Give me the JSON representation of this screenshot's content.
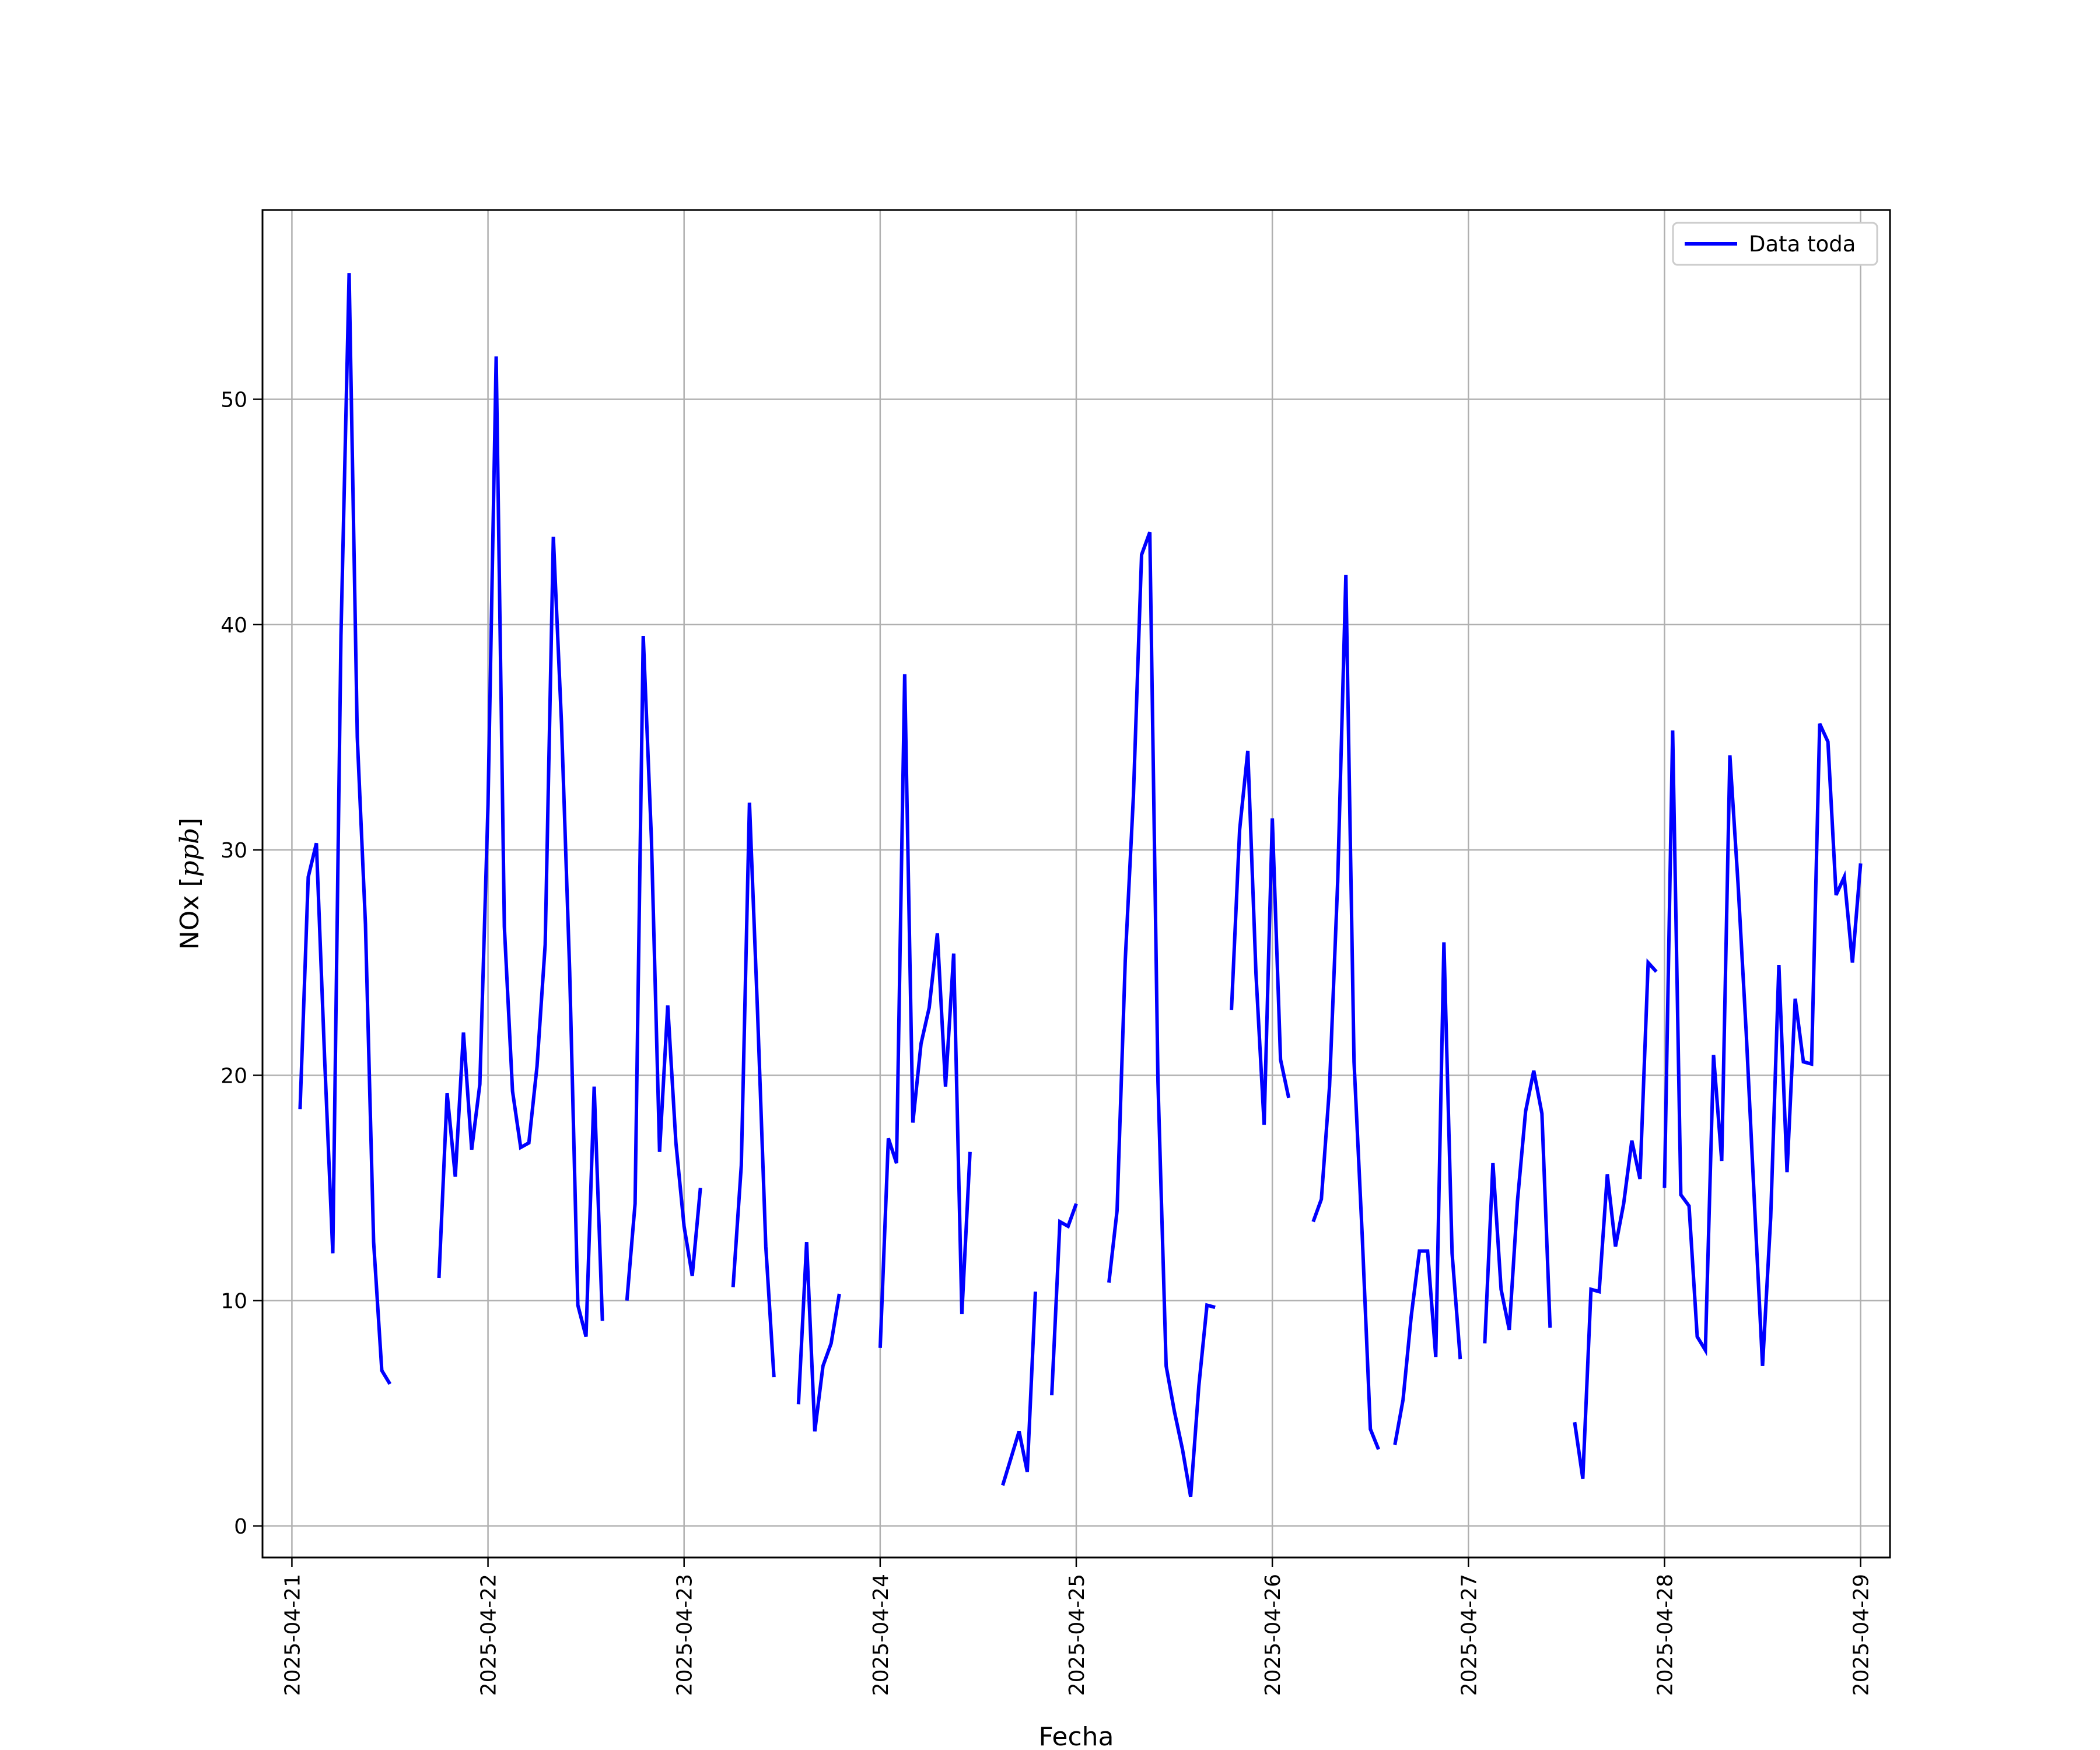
{
  "chart_data": {
    "type": "line",
    "xlabel": "Fecha",
    "ylabel_main": "NOx ",
    "ylabel_unit": "ppb",
    "grid": true,
    "legend_position": "top-right",
    "xlim": [
      "2025-04-20T20:24",
      "2025-04-29T03:36"
    ],
    "ylim": [
      -1.4,
      58.4
    ],
    "x_ticks": [
      "2025-04-21",
      "2025-04-22",
      "2025-04-23",
      "2025-04-24",
      "2025-04-25",
      "2025-04-26",
      "2025-04-27",
      "2025-04-28",
      "2025-04-29"
    ],
    "y_ticks": [
      0,
      10,
      20,
      30,
      40,
      50
    ],
    "colors": {
      "line": "#0000ff",
      "grid": "#b0b0b0",
      "legend_border": "#cccccc"
    },
    "series": [
      {
        "name": "Data toda",
        "segments": [
          [
            [
              "2025-04-21T01:00",
              18.5
            ],
            [
              "2025-04-21T02:00",
              28.8
            ],
            [
              "2025-04-21T03:00",
              30.3
            ],
            [
              "2025-04-21T04:00",
              20.8
            ],
            [
              "2025-04-21T05:00",
              12.1
            ],
            [
              "2025-04-21T06:00",
              39.5
            ],
            [
              "2025-04-21T07:00",
              55.6
            ],
            [
              "2025-04-21T08:00",
              35.0
            ],
            [
              "2025-04-21T09:00",
              26.7
            ],
            [
              "2025-04-21T10:00",
              12.6
            ],
            [
              "2025-04-21T11:00",
              6.9
            ],
            [
              "2025-04-21T12:00",
              6.3
            ]
          ],
          [
            [
              "2025-04-21T18:00",
              11.0
            ],
            [
              "2025-04-21T19:00",
              19.2
            ],
            [
              "2025-04-21T20:00",
              15.5
            ],
            [
              "2025-04-21T21:00",
              21.9
            ],
            [
              "2025-04-21T22:00",
              16.7
            ],
            [
              "2025-04-21T23:00",
              19.6
            ],
            [
              "2025-04-22T00:00",
              32.0
            ],
            [
              "2025-04-22T01:00",
              51.9
            ],
            [
              "2025-04-22T02:00",
              26.6
            ],
            [
              "2025-04-22T03:00",
              19.3
            ],
            [
              "2025-04-22T04:00",
              16.8
            ],
            [
              "2025-04-22T05:00",
              17.0
            ],
            [
              "2025-04-22T06:00",
              20.4
            ],
            [
              "2025-04-22T07:00",
              25.8
            ],
            [
              "2025-04-22T08:00",
              43.9
            ],
            [
              "2025-04-22T09:00",
              35.6
            ],
            [
              "2025-04-22T10:00",
              24.6
            ],
            [
              "2025-04-22T11:00",
              9.8
            ],
            [
              "2025-04-22T12:00",
              8.4
            ],
            [
              "2025-04-22T13:00",
              19.5
            ],
            [
              "2025-04-22T14:00",
              9.1
            ]
          ],
          [
            [
              "2025-04-22T17:00",
              10.0
            ],
            [
              "2025-04-22T18:00",
              14.3
            ],
            [
              "2025-04-22T19:00",
              39.5
            ],
            [
              "2025-04-22T20:00",
              30.5
            ],
            [
              "2025-04-22T21:00",
              16.6
            ],
            [
              "2025-04-22T22:00",
              23.1
            ],
            [
              "2025-04-22T23:00",
              17.0
            ],
            [
              "2025-04-23T00:00",
              13.3
            ],
            [
              "2025-04-23T01:00",
              11.1
            ],
            [
              "2025-04-23T02:00",
              15.0
            ]
          ],
          [
            [
              "2025-04-23T06:00",
              10.6
            ],
            [
              "2025-04-23T07:00",
              16.0
            ],
            [
              "2025-04-23T08:00",
              32.1
            ],
            [
              "2025-04-23T09:00",
              22.7
            ],
            [
              "2025-04-23T10:00",
              12.4
            ],
            [
              "2025-04-23T11:00",
              6.6
            ]
          ],
          [
            [
              "2025-04-23T14:00",
              5.4
            ],
            [
              "2025-04-23T15:00",
              12.6
            ],
            [
              "2025-04-23T16:00",
              4.2
            ],
            [
              "2025-04-23T17:00",
              7.1
            ],
            [
              "2025-04-23T18:00",
              8.1
            ],
            [
              "2025-04-23T19:00",
              10.3
            ]
          ],
          [
            [
              "2025-04-24T00:00",
              7.9
            ],
            [
              "2025-04-24T01:00",
              17.2
            ],
            [
              "2025-04-24T02:00",
              16.1
            ],
            [
              "2025-04-24T03:00",
              37.8
            ],
            [
              "2025-04-24T04:00",
              17.9
            ],
            [
              "2025-04-24T05:00",
              21.4
            ],
            [
              "2025-04-24T06:00",
              23.0
            ],
            [
              "2025-04-24T07:00",
              26.3
            ],
            [
              "2025-04-24T08:00",
              19.5
            ],
            [
              "2025-04-24T09:00",
              25.4
            ],
            [
              "2025-04-24T10:00",
              9.4
            ],
            [
              "2025-04-24T11:00",
              16.6
            ]
          ],
          [
            [
              "2025-04-24T15:00",
              1.8
            ],
            [
              "2025-04-24T16:00",
              3.0
            ],
            [
              "2025-04-24T17:00",
              4.2
            ],
            [
              "2025-04-24T18:00",
              2.4
            ],
            [
              "2025-04-24T19:00",
              10.4
            ]
          ],
          [
            [
              "2025-04-24T21:00",
              5.8
            ],
            [
              "2025-04-24T22:00",
              13.5
            ],
            [
              "2025-04-24T23:00",
              13.3
            ],
            [
              "2025-04-25T00:00",
              14.3
            ]
          ],
          [
            [
              "2025-04-25T04:00",
              10.8
            ],
            [
              "2025-04-25T05:00",
              14.0
            ],
            [
              "2025-04-25T06:00",
              25.1
            ],
            [
              "2025-04-25T07:00",
              32.4
            ],
            [
              "2025-04-25T08:00",
              43.1
            ],
            [
              "2025-04-25T09:00",
              44.1
            ],
            [
              "2025-04-25T10:00",
              19.7
            ],
            [
              "2025-04-25T11:00",
              7.1
            ],
            [
              "2025-04-25T12:00",
              5.1
            ],
            [
              "2025-04-25T13:00",
              3.4
            ],
            [
              "2025-04-25T14:00",
              1.3
            ],
            [
              "2025-04-25T15:00",
              6.2
            ],
            [
              "2025-04-25T16:00",
              9.8
            ],
            [
              "2025-04-25T17:00",
              9.7
            ]
          ],
          [
            [
              "2025-04-25T19:00",
              22.9
            ],
            [
              "2025-04-25T20:00",
              30.9
            ],
            [
              "2025-04-25T21:00",
              34.4
            ],
            [
              "2025-04-25T22:00",
              24.5
            ],
            [
              "2025-04-25T23:00",
              17.8
            ],
            [
              "2025-04-26T00:00",
              31.4
            ],
            [
              "2025-04-26T01:00",
              20.7
            ],
            [
              "2025-04-26T02:00",
              19.0
            ]
          ],
          [
            [
              "2025-04-26T05:00",
              13.5
            ],
            [
              "2025-04-26T06:00",
              14.5
            ],
            [
              "2025-04-26T07:00",
              19.5
            ],
            [
              "2025-04-26T08:00",
              28.6
            ],
            [
              "2025-04-26T09:00",
              42.2
            ],
            [
              "2025-04-26T10:00",
              20.6
            ],
            [
              "2025-04-26T11:00",
              12.9
            ],
            [
              "2025-04-26T12:00",
              4.3
            ],
            [
              "2025-04-26T13:00",
              3.4
            ]
          ],
          [
            [
              "2025-04-26T15:00",
              3.6
            ],
            [
              "2025-04-26T16:00",
              5.6
            ],
            [
              "2025-04-26T17:00",
              9.3
            ],
            [
              "2025-04-26T18:00",
              12.2
            ],
            [
              "2025-04-26T19:00",
              12.2
            ],
            [
              "2025-04-26T20:00",
              7.5
            ],
            [
              "2025-04-26T21:00",
              25.9
            ],
            [
              "2025-04-26T22:00",
              12.1
            ],
            [
              "2025-04-26T23:00",
              7.4
            ]
          ],
          [
            [
              "2025-04-27T02:00",
              8.1
            ],
            [
              "2025-04-27T03:00",
              16.1
            ],
            [
              "2025-04-27T04:00",
              10.5
            ],
            [
              "2025-04-27T05:00",
              8.7
            ],
            [
              "2025-04-27T06:00",
              14.4
            ],
            [
              "2025-04-27T07:00",
              18.4
            ],
            [
              "2025-04-27T08:00",
              20.2
            ],
            [
              "2025-04-27T09:00",
              18.3
            ],
            [
              "2025-04-27T10:00",
              8.8
            ]
          ],
          [
            [
              "2025-04-27T13:00",
              4.6
            ],
            [
              "2025-04-27T14:00",
              2.1
            ],
            [
              "2025-04-27T15:00",
              10.5
            ],
            [
              "2025-04-27T16:00",
              10.4
            ],
            [
              "2025-04-27T17:00",
              15.6
            ],
            [
              "2025-04-27T18:00",
              12.4
            ],
            [
              "2025-04-27T19:00",
              14.3
            ],
            [
              "2025-04-27T20:00",
              17.1
            ],
            [
              "2025-04-27T21:00",
              15.4
            ],
            [
              "2025-04-27T22:00",
              25.0
            ],
            [
              "2025-04-27T23:00",
              24.6
            ]
          ],
          [
            [
              "2025-04-28T00:00",
              15.0
            ],
            [
              "2025-04-28T01:00",
              35.3
            ],
            [
              "2025-04-28T02:00",
              14.7
            ],
            [
              "2025-04-28T03:00",
              14.2
            ],
            [
              "2025-04-28T04:00",
              8.4
            ],
            [
              "2025-04-28T05:00",
              7.8
            ],
            [
              "2025-04-28T06:00",
              20.9
            ],
            [
              "2025-04-28T07:00",
              16.2
            ],
            [
              "2025-04-28T08:00",
              34.2
            ],
            [
              "2025-04-28T09:00",
              28.5
            ],
            [
              "2025-04-28T10:00",
              21.9
            ],
            [
              "2025-04-28T11:00",
              14.4
            ],
            [
              "2025-04-28T12:00",
              7.1
            ],
            [
              "2025-04-28T13:00",
              13.7
            ],
            [
              "2025-04-28T14:00",
              24.9
            ],
            [
              "2025-04-28T15:00",
              15.7
            ],
            [
              "2025-04-28T16:00",
              23.4
            ],
            [
              "2025-04-28T17:00",
              20.6
            ],
            [
              "2025-04-28T18:00",
              20.5
            ],
            [
              "2025-04-28T19:00",
              35.6
            ],
            [
              "2025-04-28T20:00",
              34.8
            ],
            [
              "2025-04-28T21:00",
              28.0
            ],
            [
              "2025-04-28T22:00",
              28.8
            ],
            [
              "2025-04-28T23:00",
              25.0
            ],
            [
              "2025-04-29T00:00",
              29.4
            ]
          ]
        ]
      }
    ]
  }
}
